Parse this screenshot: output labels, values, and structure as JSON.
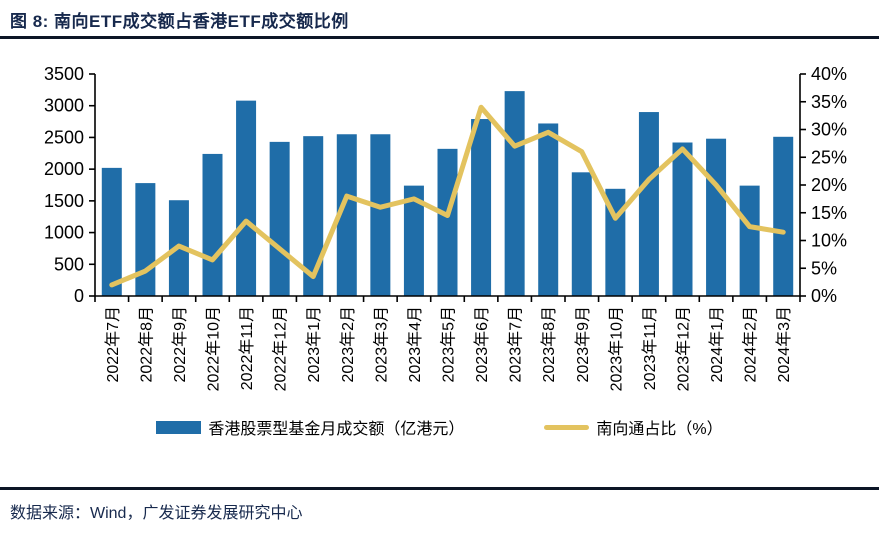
{
  "header": {
    "title": "图 8: 南向ETF成交额占香港ETF成交额比例"
  },
  "chart_data": {
    "type": "bar",
    "combo": "bar+line dual-axis",
    "title": "南向ETF成交额占香港ETF成交额比例",
    "categories": [
      "2022年7月",
      "2022年8月",
      "2022年9月",
      "2022年10月",
      "2022年11月",
      "2022年12月",
      "2023年1月",
      "2023年2月",
      "2023年3月",
      "2023年4月",
      "2023年5月",
      "2023年6月",
      "2023年7月",
      "2023年8月",
      "2023年9月",
      "2023年10月",
      "2023年11月",
      "2023年12月",
      "2024年1月",
      "2024年2月",
      "2024年3月"
    ],
    "series": [
      {
        "name": "香港股票型基金月成交额（亿港元）",
        "type": "bar",
        "axis": "left",
        "color": "#1F6DA8",
        "values": [
          2020,
          1780,
          1510,
          2240,
          3080,
          2430,
          2520,
          2550,
          2550,
          1740,
          2320,
          2790,
          3230,
          2720,
          1950,
          1690,
          2900,
          2420,
          2480,
          1740,
          2510
        ]
      },
      {
        "name": "南向通占比（%）",
        "type": "line",
        "axis": "right",
        "color": "#E3C35F",
        "values": [
          2,
          4.5,
          9,
          6.5,
          13.5,
          8.5,
          3.5,
          18,
          16,
          17.5,
          14.5,
          34,
          27,
          29.5,
          26,
          14,
          21,
          26.5,
          20,
          12.5,
          11.5
        ]
      }
    ],
    "left_axis": {
      "min": 0,
      "max": 3500,
      "step": 500,
      "tick_labels": [
        "3500",
        "3000",
        "2500",
        "2000",
        "1500",
        "1000",
        "500",
        "0"
      ]
    },
    "right_axis": {
      "min": 0,
      "max": 40,
      "step": 5,
      "tick_labels": [
        "40%",
        "35%",
        "30%",
        "25%",
        "20%",
        "15%",
        "10%",
        "5%",
        "0%"
      ]
    },
    "grid": false,
    "legend_position": "bottom",
    "axis_color": "#000000"
  },
  "footer": {
    "source": "数据来源：Wind，广发证券发展研究中心"
  }
}
